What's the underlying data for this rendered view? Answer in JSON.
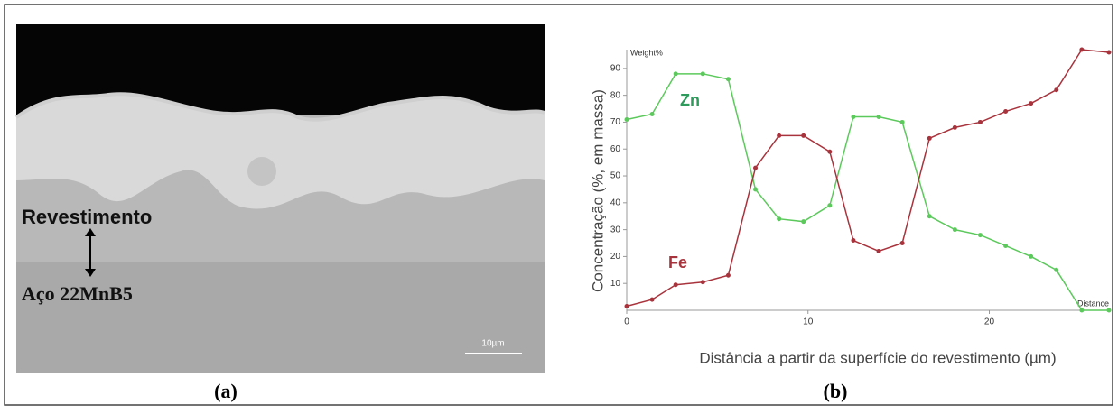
{
  "panel_a": {
    "labels": [
      "Revestimento",
      "Aço 22MnB5"
    ],
    "scale_bar": "10µm",
    "panel_label": "(a)"
  },
  "chart_data": {
    "type": "line",
    "x_label": "Distância a partir da superfície do revestimento (µm)",
    "y_label": "Concentração (%, em massa)",
    "annotations": [
      "Weight%",
      "Distance"
    ],
    "panel_label": "(b)",
    "x": [
      0,
      1.4,
      2.7,
      4.2,
      5.6,
      7.1,
      8.4,
      9.75,
      11.2,
      12.5,
      13.9,
      15.2,
      16.7,
      18.1,
      19.5,
      20.9,
      22.3,
      23.7,
      25.1,
      26.6
    ],
    "series": [
      {
        "name": "Zn",
        "color": "#5cc95c",
        "label_color": "#2e9a5c",
        "values": [
          71,
          73,
          88,
          88,
          86,
          45,
          34,
          33,
          39,
          72,
          72,
          70,
          35,
          30,
          28,
          24,
          20,
          15,
          0,
          0
        ]
      },
      {
        "name": "Fe",
        "color": "#a8333c",
        "label_color": "#a8333c",
        "values": [
          1.5,
          4,
          9.5,
          10.5,
          13,
          53,
          65,
          65,
          59,
          26,
          22,
          25,
          64,
          68,
          70,
          74,
          77,
          82,
          97,
          96
        ]
      }
    ],
    "xlim": [
      0,
      26.7
    ],
    "xticks": [
      0,
      10,
      20
    ],
    "ylim": [
      0,
      97
    ],
    "yticks": [
      10,
      20,
      30,
      40,
      50,
      60,
      70,
      80,
      90
    ],
    "grid": false
  }
}
